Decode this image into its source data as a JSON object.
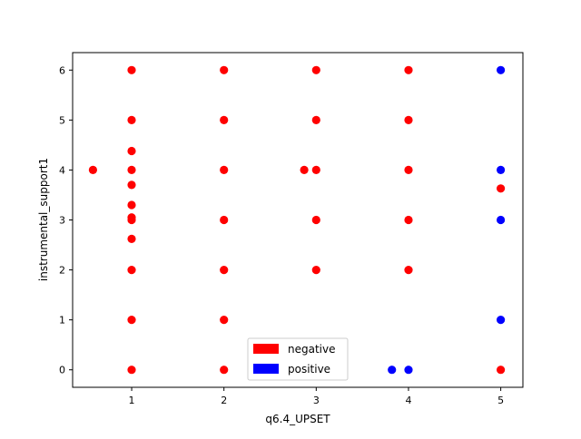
{
  "chart_data": {
    "type": "scatter",
    "title": "",
    "xlabel": "q6.4_UPSET",
    "ylabel": "instrumental_support1",
    "xlim": [
      0.36,
      5.24
    ],
    "ylim": [
      -0.35,
      6.35
    ],
    "xticks": [
      1,
      2,
      3,
      4,
      5
    ],
    "yticks": [
      0,
      1,
      2,
      3,
      4,
      5,
      6
    ],
    "grid": false,
    "legend_position": "lower-center",
    "series": [
      {
        "name": "negative",
        "color": "#ff0000",
        "points": [
          [
            1,
            6
          ],
          [
            1,
            5
          ],
          [
            1,
            4.38
          ],
          [
            1,
            4
          ],
          [
            1,
            3.7
          ],
          [
            1,
            3.3
          ],
          [
            1,
            3.05
          ],
          [
            1,
            3
          ],
          [
            1,
            2.62
          ],
          [
            1,
            2
          ],
          [
            1,
            1
          ],
          [
            1,
            0
          ],
          [
            0.58,
            4
          ],
          [
            2,
            6
          ],
          [
            2,
            5
          ],
          [
            2,
            4
          ],
          [
            2,
            3
          ],
          [
            2,
            2
          ],
          [
            2,
            1
          ],
          [
            2,
            0
          ],
          [
            3,
            6
          ],
          [
            3,
            5
          ],
          [
            3,
            4
          ],
          [
            2.87,
            4
          ],
          [
            3,
            3
          ],
          [
            3,
            2
          ],
          [
            4,
            6
          ],
          [
            4,
            5
          ],
          [
            4,
            4
          ],
          [
            4,
            3
          ],
          [
            4,
            2
          ],
          [
            5,
            3.63
          ],
          [
            5,
            0
          ]
        ]
      },
      {
        "name": "positive",
        "color": "#0000ff",
        "points": [
          [
            5,
            6
          ],
          [
            5,
            4
          ],
          [
            5,
            3
          ],
          [
            5,
            1
          ],
          [
            3.82,
            0
          ],
          [
            4,
            0
          ]
        ]
      }
    ]
  }
}
